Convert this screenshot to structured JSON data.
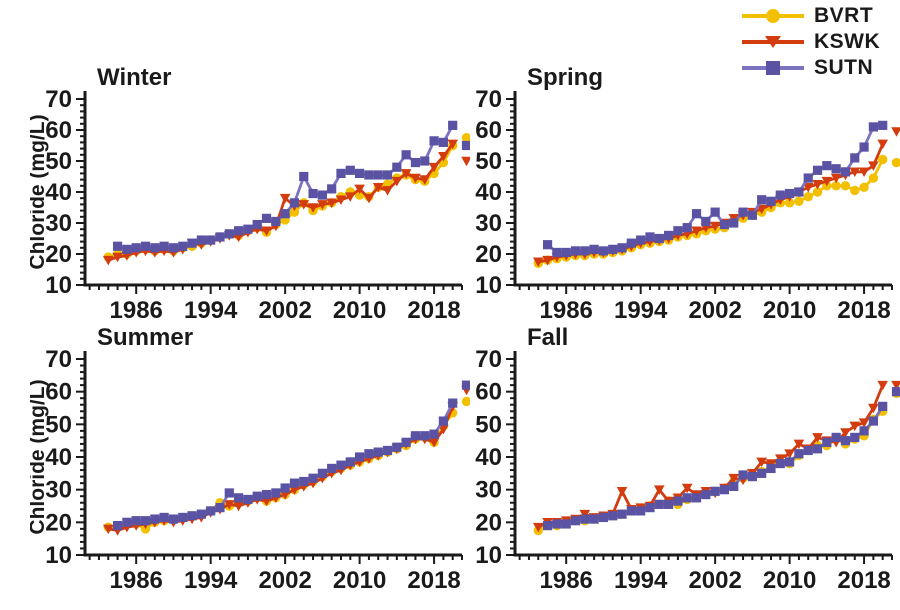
{
  "figure": {
    "ylabel": "Chloride (mg/L)"
  },
  "legend": {
    "entries": [
      {
        "label": "BVRT",
        "color": "#F3C000",
        "line_color": "#F3C000",
        "marker": "circle"
      },
      {
        "label": "KSWK",
        "color": "#D23C0F",
        "line_color": "#D23C0F",
        "marker": "triangle-down"
      },
      {
        "label": "SUTN",
        "color": "#5A52A2",
        "line_color": "#7C73C0",
        "marker": "square"
      }
    ]
  },
  "chart_data": [
    {
      "type": "line",
      "title": "Winter",
      "xlabel": "",
      "ylabel": "Chloride (mg/L)",
      "xlim": [
        1980.5,
        2021
      ],
      "ylim": [
        10,
        70
      ],
      "x_major_ticks": [
        1986,
        1994,
        2002,
        2010,
        2018
      ],
      "y_major_ticks": [
        10,
        20,
        30,
        40,
        50,
        60,
        70
      ],
      "x_minor_step": 1,
      "y_minor_step": 2,
      "years": [
        1983,
        1984,
        1985,
        1986,
        1987,
        1988,
        1989,
        1990,
        1991,
        1992,
        1993,
        1994,
        1995,
        1996,
        1997,
        1998,
        1999,
        2000,
        2001,
        2002,
        2003,
        2004,
        2005,
        2006,
        2007,
        2008,
        2009,
        2010,
        2011,
        2012,
        2013,
        2014,
        2015,
        2016,
        2017,
        2018,
        2019,
        2020
      ],
      "series": [
        {
          "name": "BVRT",
          "values": [
            19,
            20,
            20,
            21,
            21.5,
            21,
            21.5,
            21,
            22,
            22.5,
            23.5,
            24.5,
            25.5,
            26.5,
            26,
            27.5,
            28.5,
            27,
            29.5,
            31,
            33.5,
            36.5,
            34,
            35.5,
            36.5,
            38.5,
            40,
            39,
            38.5,
            41.5,
            42.5,
            44.5,
            45.5,
            44,
            43.5,
            46,
            49.5,
            55
          ],
          "detached_2021": 57.5
        },
        {
          "name": "KSWK",
          "values": [
            18,
            19,
            19.5,
            20.5,
            21,
            20.5,
            21,
            20.5,
            21.5,
            23.5,
            23,
            24,
            25,
            26,
            25.5,
            27,
            28,
            27.5,
            29,
            38,
            35.5,
            36,
            35,
            36,
            36.5,
            37.5,
            38.5,
            41,
            38,
            41.5,
            40.5,
            43.5,
            46,
            44.5,
            44,
            48,
            51.5,
            55.5
          ],
          "detached_2021": 50
        },
        {
          "name": "SUTN",
          "values": [
            null,
            22.5,
            21.5,
            22,
            22.5,
            22,
            22.5,
            22,
            22.5,
            23.5,
            24.5,
            24.5,
            25.5,
            26.5,
            27.5,
            28,
            29.5,
            31.5,
            30.5,
            33,
            36.5,
            45,
            39.5,
            39,
            41,
            46,
            47,
            46,
            45.5,
            45.5,
            45.5,
            48,
            52,
            49.5,
            50,
            56.5,
            56,
            61.5
          ],
          "detached_2021": 55
        }
      ]
    },
    {
      "type": "line",
      "title": "Spring",
      "xlabel": "",
      "ylabel": "",
      "xlim": [
        1980.5,
        2021
      ],
      "ylim": [
        10,
        70
      ],
      "x_major_ticks": [
        1986,
        1994,
        2002,
        2010,
        2018
      ],
      "y_major_ticks": [
        10,
        20,
        30,
        40,
        50,
        60,
        70
      ],
      "x_minor_step": 1,
      "y_minor_step": 2,
      "years": [
        1983,
        1984,
        1985,
        1986,
        1987,
        1988,
        1989,
        1990,
        1991,
        1992,
        1993,
        1994,
        1995,
        1996,
        1997,
        1998,
        1999,
        2000,
        2001,
        2002,
        2003,
        2004,
        2005,
        2006,
        2007,
        2008,
        2009,
        2010,
        2011,
        2012,
        2013,
        2014,
        2015,
        2016,
        2017,
        2018,
        2019,
        2020
      ],
      "series": [
        {
          "name": "BVRT",
          "values": [
            17,
            18,
            18.5,
            19,
            19.5,
            19.5,
            20,
            20,
            20.5,
            21,
            22,
            23,
            23.5,
            24,
            24.5,
            25.5,
            26,
            26.5,
            27.5,
            28,
            28.5,
            30.5,
            31.5,
            32.5,
            33.5,
            35,
            36.5,
            36.5,
            37,
            38.5,
            40,
            42,
            42,
            42,
            40.5,
            41.5,
            44.5,
            50.5
          ],
          "detached_2021": 49.5
        },
        {
          "name": "KSWK",
          "values": [
            17.5,
            18,
            19,
            19.5,
            20,
            20,
            20.5,
            20.5,
            21,
            21.5,
            22.5,
            23.5,
            24,
            24.5,
            25,
            26,
            26.5,
            27.5,
            28.5,
            29,
            30,
            31.5,
            32.5,
            33.5,
            34.5,
            36,
            37.5,
            38.5,
            40,
            41.5,
            42.5,
            43.5,
            44.5,
            45.5,
            46.5,
            46.5,
            48.5,
            55.5
          ],
          "detached_2021": 59.5
        },
        {
          "name": "SUTN",
          "values": [
            null,
            23,
            20.5,
            20.5,
            21,
            21,
            21.5,
            21,
            21.5,
            22,
            23.5,
            24.5,
            25.5,
            25,
            26,
            27.5,
            28.5,
            33,
            30.5,
            33.5,
            29.5,
            30,
            33.5,
            32.5,
            37.5,
            37,
            39,
            39.5,
            40,
            44.5,
            47,
            48.5,
            47.5,
            46.5,
            51,
            54.5,
            61,
            61.5
          ],
          "detached_2021": null
        }
      ]
    },
    {
      "type": "line",
      "title": "Summer",
      "xlabel": "",
      "ylabel": "Chloride (mg/L)",
      "xlim": [
        1980.5,
        2021
      ],
      "ylim": [
        10,
        70
      ],
      "x_major_ticks": [
        1986,
        1994,
        2002,
        2010,
        2018
      ],
      "y_major_ticks": [
        10,
        20,
        30,
        40,
        50,
        60,
        70
      ],
      "x_minor_step": 1,
      "y_minor_step": 2,
      "years": [
        1983,
        1984,
        1985,
        1986,
        1987,
        1988,
        1989,
        1990,
        1991,
        1992,
        1993,
        1994,
        1995,
        1996,
        1997,
        1998,
        1999,
        2000,
        2001,
        2002,
        2003,
        2004,
        2005,
        2006,
        2007,
        2008,
        2009,
        2010,
        2011,
        2012,
        2013,
        2014,
        2015,
        2016,
        2017,
        2018,
        2019,
        2020
      ],
      "series": [
        {
          "name": "BVRT",
          "values": [
            18.5,
            18.5,
            19.5,
            19.5,
            18,
            20,
            20.5,
            21,
            21.5,
            22,
            22.5,
            23.5,
            26,
            25,
            26,
            26.5,
            27.5,
            26.5,
            27.5,
            28.5,
            30,
            31.5,
            32.5,
            34,
            35.5,
            36.5,
            37.5,
            38.5,
            39.5,
            40.5,
            41.5,
            42.5,
            43.5,
            45.5,
            46,
            44.5,
            49.5,
            53.5
          ],
          "detached_2021": 57
        },
        {
          "name": "KSWK",
          "values": [
            18,
            17.5,
            18.5,
            19,
            19.5,
            20,
            20.5,
            20,
            20.5,
            21,
            21.5,
            23,
            24,
            25.5,
            25,
            26,
            27,
            26.5,
            27.5,
            28.5,
            30,
            31,
            32,
            33.5,
            35,
            36,
            37.5,
            38.5,
            39.5,
            40.5,
            41.5,
            42.5,
            44,
            45.5,
            45.5,
            44.5,
            48.5,
            55.5
          ],
          "detached_2021": 60.5
        },
        {
          "name": "SUTN",
          "values": [
            null,
            19,
            20,
            20.5,
            20.5,
            21,
            21.5,
            21,
            21.5,
            22,
            22.5,
            23.5,
            24.5,
            29,
            27.5,
            27,
            28,
            28.5,
            29,
            30.5,
            32,
            32.5,
            33.5,
            35,
            36.5,
            37.5,
            38.5,
            40,
            41,
            41.5,
            42,
            43,
            44.5,
            46.5,
            46.5,
            47,
            51,
            56.5
          ],
          "detached_2021": 62
        }
      ]
    },
    {
      "type": "line",
      "title": "Fall",
      "xlabel": "",
      "ylabel": "",
      "xlim": [
        1980.5,
        2021
      ],
      "ylim": [
        10,
        70
      ],
      "x_major_ticks": [
        1986,
        1994,
        2002,
        2010,
        2018
      ],
      "y_major_ticks": [
        10,
        20,
        30,
        40,
        50,
        60,
        70
      ],
      "x_minor_step": 1,
      "y_minor_step": 2,
      "years": [
        1983,
        1984,
        1985,
        1986,
        1987,
        1988,
        1989,
        1990,
        1991,
        1992,
        1993,
        1994,
        1995,
        1996,
        1997,
        1998,
        1999,
        2000,
        2001,
        2002,
        2003,
        2004,
        2005,
        2006,
        2007,
        2008,
        2009,
        2010,
        2011,
        2012,
        2013,
        2014,
        2015,
        2016,
        2017,
        2018,
        2019,
        2020
      ],
      "series": [
        {
          "name": "BVRT",
          "values": [
            17.5,
            19,
            19,
            19.5,
            20.5,
            20.5,
            21,
            21.5,
            22,
            22.5,
            23.5,
            24,
            25,
            25.5,
            26.5,
            25.5,
            27,
            27.5,
            28.5,
            29.5,
            30.5,
            32.5,
            33.5,
            34,
            35.5,
            37,
            38.5,
            38,
            40.5,
            42,
            43.5,
            43.5,
            45.5,
            44,
            45.5,
            46.5,
            51.5,
            54
          ],
          "detached_2021": 59.5
        },
        {
          "name": "KSWK",
          "values": [
            18.5,
            20,
            20,
            20.5,
            21,
            22.5,
            21.5,
            22,
            22.5,
            29.5,
            24,
            24.5,
            25,
            30,
            26.5,
            27.5,
            30.5,
            28.5,
            29.5,
            29,
            30.5,
            33.5,
            33,
            35,
            38.5,
            38,
            39.5,
            41,
            44,
            42.5,
            46,
            45,
            44.5,
            47.5,
            49.5,
            50.5,
            55,
            62
          ],
          "detached_2021": 62
        },
        {
          "name": "SUTN",
          "values": [
            null,
            19,
            19.5,
            19.5,
            20.5,
            21,
            21,
            21.5,
            22,
            22.5,
            23.5,
            23.5,
            24.5,
            25.5,
            25.5,
            26.5,
            27.5,
            27.5,
            28.5,
            29.5,
            30,
            31,
            34.5,
            34,
            35,
            36.5,
            38,
            38.5,
            41,
            42,
            42.5,
            44.5,
            46,
            45,
            46,
            48,
            51,
            55.5
          ],
          "detached_2021": 60
        }
      ]
    }
  ]
}
